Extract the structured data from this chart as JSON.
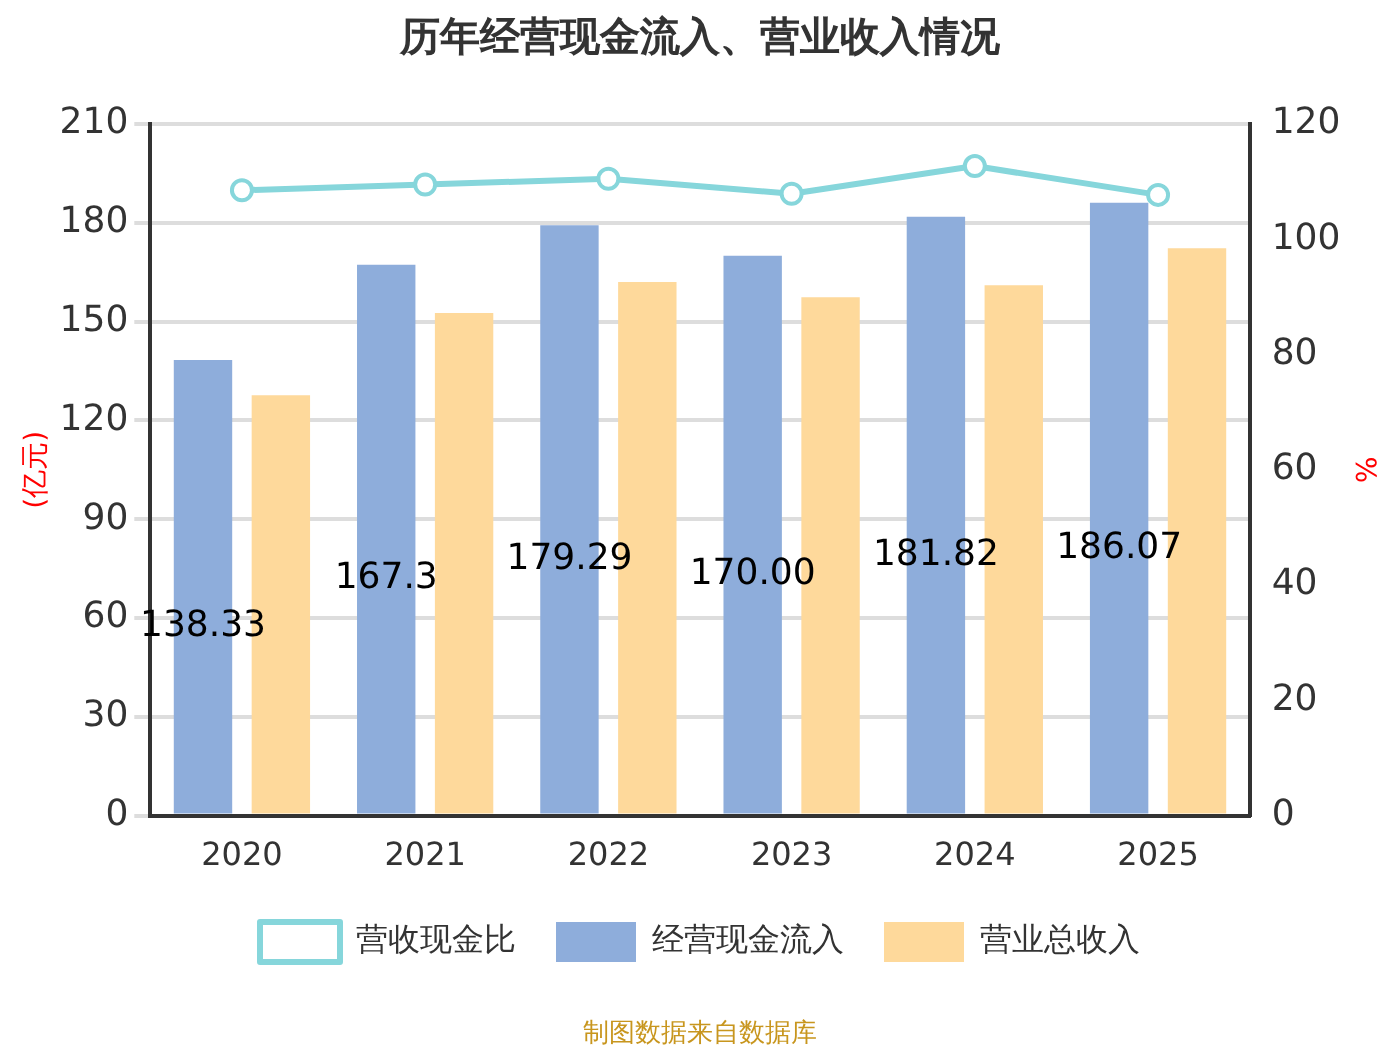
{
  "chart_data": {
    "type": "bar",
    "title": "历年经营现金流入、营业收入情况",
    "categories": [
      "2020",
      "2021",
      "2022",
      "2023",
      "2024",
      "2025"
    ],
    "series": [
      {
        "name": "经营现金流入",
        "color": "#8eaddb",
        "values": [
          138.33,
          167.3,
          179.29,
          170.0,
          181.82,
          186.07
        ],
        "value_labels": [
          "138.33",
          "167.3",
          "179.29",
          "170.00",
          "181.82",
          "186.07"
        ]
      },
      {
        "name": "营业总收入",
        "color": "#fed99b",
        "values": [
          127.6,
          152.6,
          162.0,
          157.4,
          161.0,
          172.3
        ]
      },
      {
        "name": "营收现金比",
        "type": "line",
        "axis": "y2",
        "color": "#86d6db",
        "values": [
          108.5,
          109.5,
          110.5,
          107.9,
          112.7,
          107.7
        ]
      }
    ],
    "ylabel": "(亿元)",
    "y2label": "%",
    "ylim": [
      0,
      210
    ],
    "yticks": [
      0,
      30,
      60,
      90,
      120,
      150,
      180,
      210
    ],
    "y2lim": [
      0,
      120
    ],
    "y2ticks": [
      0,
      20,
      40,
      60,
      80,
      100,
      120
    ],
    "grid": "y",
    "legend": "bottom",
    "marker": "circle",
    "annotations": [
      "制图数据来自数据库"
    ]
  }
}
